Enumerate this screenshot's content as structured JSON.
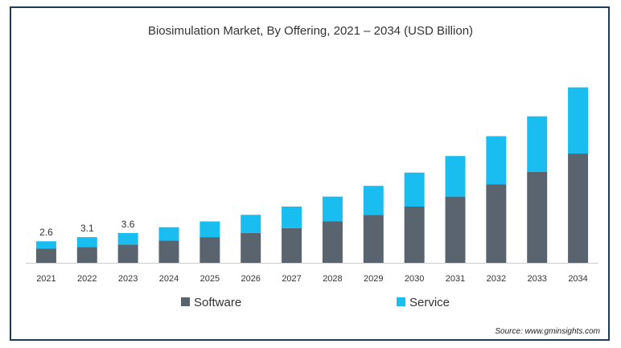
{
  "colors": {
    "frame": "#1f3b57",
    "software": "#5a646f",
    "service": "#19bdf0",
    "axis": "#cccccc",
    "text": "#333333"
  },
  "chart_data": {
    "type": "bar",
    "stacked": true,
    "title": "Biosimulation Market, By Offering, 2021 – 2034 (USD Billion)",
    "xlabel": "",
    "ylabel": "",
    "categories": [
      "2021",
      "2022",
      "2023",
      "2024",
      "2025",
      "2026",
      "2027",
      "2028",
      "2029",
      "2030",
      "2031",
      "2032",
      "2033",
      "2034"
    ],
    "series": [
      {
        "name": "Software",
        "color": "#5a646f",
        "values": [
          1.7,
          1.9,
          2.2,
          2.7,
          3.1,
          3.6,
          4.2,
          5.0,
          5.8,
          6.8,
          8.0,
          9.5,
          11.0,
          13.2
        ]
      },
      {
        "name": "Service",
        "color": "#19bdf0",
        "values": [
          0.9,
          1.2,
          1.4,
          1.6,
          1.9,
          2.2,
          2.6,
          3.0,
          3.5,
          4.1,
          4.9,
          5.8,
          6.7,
          8.0
        ]
      }
    ],
    "data_labels": [
      {
        "category": "2021",
        "text": "2.6"
      },
      {
        "category": "2022",
        "text": "3.1"
      },
      {
        "category": "2023",
        "text": "3.6"
      }
    ],
    "ylim": [
      0,
      23.5
    ],
    "grid": false,
    "legend": "bottom-center"
  },
  "source_text": "Source: www.gminsights.com"
}
